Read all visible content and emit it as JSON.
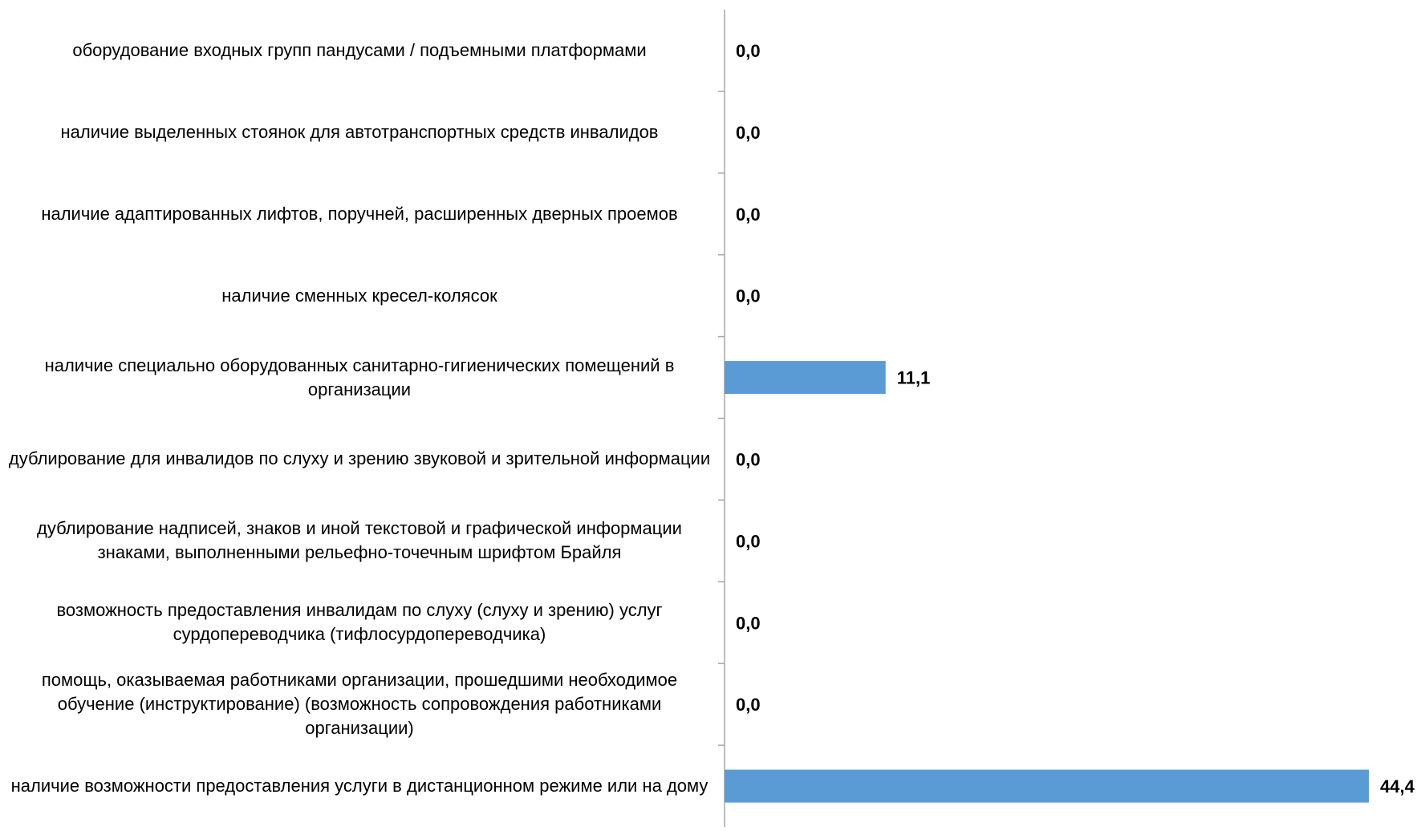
{
  "chart_data": {
    "type": "bar",
    "orientation": "horizontal",
    "categories": [
      "оборудование входных групп пандусами / подъемными платформами",
      "наличие выделенных стоянок для автотранспортных средств инвалидов",
      "наличие адаптированных лифтов, поручней, расширенных дверных проемов",
      "наличие сменных кресел-колясок",
      "наличие специально оборудованных санитарно-гигиенических помещений в организации",
      "дублирование для инвалидов по слуху и зрению звуковой и зрительной информации",
      "дублирование надписей, знаков и иной текстовой и графической информации знаками, выполненными рельефно-точечным шрифтом Брайля",
      "возможность предоставления инвалидам по слуху (слуху и зрению) услуг сурдопереводчика (тифлосурдопереводчика)",
      "помощь, оказываемая работниками организации, прошедшими необходимое обучение (инструктирование) (возможность сопровождения работниками организации)",
      "наличие возможности предоставления услуги в дистанционном режиме или на дому"
    ],
    "values": [
      0.0,
      0.0,
      0.0,
      0.0,
      11.1,
      0.0,
      0.0,
      0.0,
      0.0,
      44.4
    ],
    "data_labels": [
      "0,0",
      "0,0",
      "0,0",
      "0,0",
      "11,1",
      "0,0",
      "0,0",
      "0,0",
      "0,0",
      "44,4"
    ],
    "xlim": [
      0,
      44.4
    ],
    "grid": false,
    "legend": "none",
    "bar_color": "#5B9BD5",
    "axis_color": "#A6A6A6",
    "label_color": "#000000"
  }
}
